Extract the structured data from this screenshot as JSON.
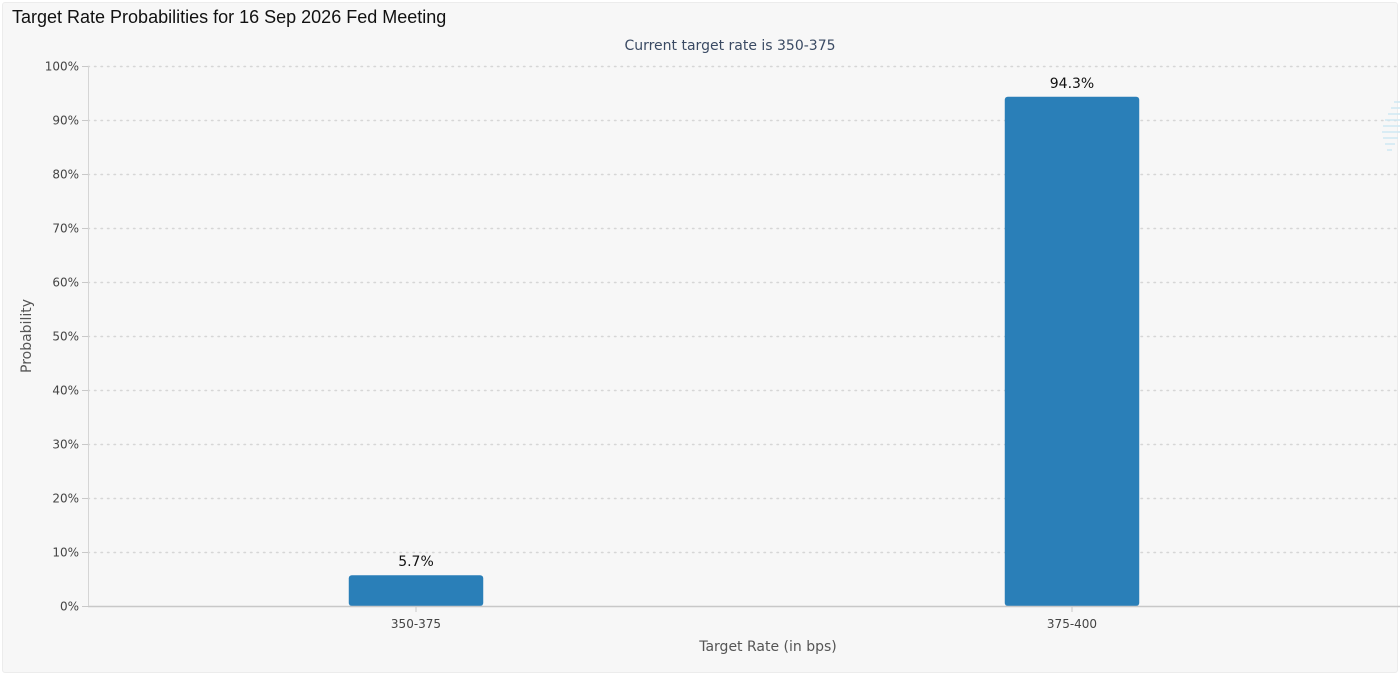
{
  "page": {
    "title": "Target Rate Probabilities for 16 Sep 2026 Fed Meeting"
  },
  "chart_data": {
    "type": "bar",
    "title": "Target Rate Probabilities for 16 Sep 2026 Fed Meeting",
    "subtitle": "Current target rate is 350-375",
    "categories": [
      "350-375",
      "375-400"
    ],
    "values": [
      5.7,
      94.3
    ],
    "data_labels": [
      "5.7%",
      "94.3%"
    ],
    "xlabel": "Target Rate (in bps)",
    "ylabel": "Probability",
    "ylim": [
      0,
      100
    ],
    "yticks": [
      0,
      10,
      20,
      30,
      40,
      50,
      60,
      70,
      80,
      90,
      100
    ],
    "ytick_labels": [
      "0%",
      "10%",
      "20%",
      "30%",
      "40%",
      "50%",
      "60%",
      "70%",
      "80%",
      "90%",
      "100%"
    ],
    "grid": true,
    "legend": "none",
    "bar_color": "#2a7fb8"
  }
}
